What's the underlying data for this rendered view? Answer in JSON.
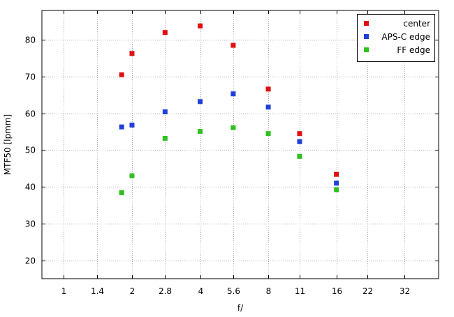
{
  "chart_data": {
    "type": "scatter",
    "title": "",
    "xlabel": "f/",
    "ylabel": "MTF50 [lpmm]",
    "x_scale": "log2",
    "xlim": [
      0.8,
      45.25
    ],
    "ylim": [
      15,
      88
    ],
    "x_ticks": [
      1,
      1.4,
      2,
      2.8,
      4,
      5.6,
      8,
      11,
      16,
      22,
      32
    ],
    "x_tick_labels": [
      "1",
      "1.4",
      "2",
      "2.8",
      "4",
      "5.6",
      "8",
      "11",
      "16",
      "22",
      "32"
    ],
    "y_ticks": [
      20,
      30,
      40,
      50,
      60,
      70,
      80
    ],
    "y_tick_labels": [
      "20",
      "30",
      "40",
      "50",
      "60",
      "70",
      "80"
    ],
    "grid": true,
    "legend_position": "top-right",
    "x": [
      1.8,
      2,
      2.8,
      4,
      5.6,
      8,
      11,
      16
    ],
    "series": [
      {
        "name": "center",
        "color": "#e01010",
        "values": [
          70.5,
          76.3,
          82.0,
          83.8,
          78.5,
          66.6,
          54.5,
          43.4
        ]
      },
      {
        "name": "APS-C edge",
        "color": "#2040d8",
        "values": [
          56.3,
          56.8,
          60.4,
          63.2,
          65.3,
          61.7,
          52.3,
          41.0
        ]
      },
      {
        "name": "FF edge",
        "color": "#30c020",
        "values": [
          38.4,
          43.0,
          53.2,
          55.1,
          56.1,
          54.5,
          48.3,
          39.2
        ]
      }
    ]
  }
}
